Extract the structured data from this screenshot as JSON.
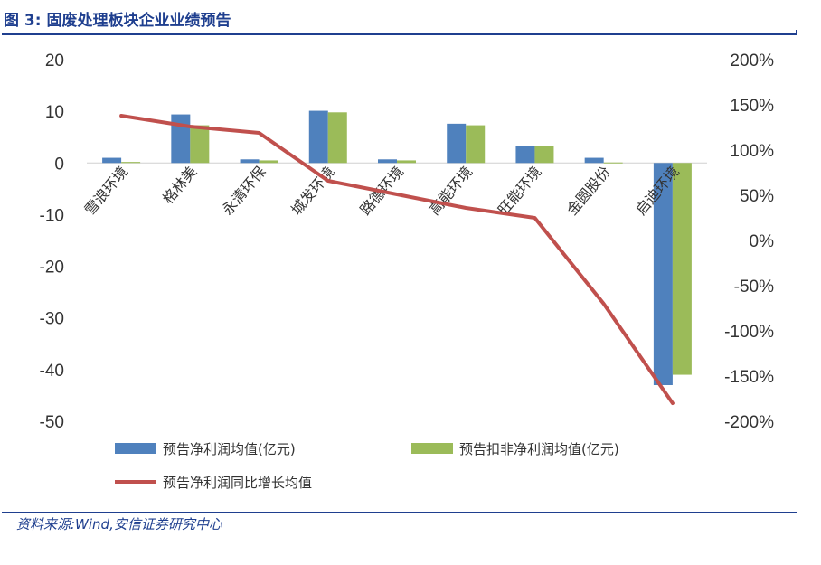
{
  "figure": {
    "title": "图 3:  固废处理板块企业业绩预告",
    "source": "资料来源:Wind,安信证券研究中心"
  },
  "colors": {
    "accent": "#1f3f8f",
    "bar_series_1": "#4f81bd",
    "bar_series_2": "#9bbb59",
    "line_series": "#c0504d"
  },
  "chart_data": {
    "type": "bar",
    "categories": [
      "雪浪环境",
      "格林美",
      "永清环保",
      "城发环境",
      "路德环境",
      "高能环境",
      "旺能环境",
      "金圆股份",
      "启迪环境"
    ],
    "series": [
      {
        "name": "预告净利润均值(亿元)",
        "type": "bar",
        "axis": "left",
        "values": [
          1.0,
          9.4,
          0.7,
          10.1,
          0.7,
          7.6,
          3.2,
          1.0,
          -43.0
        ]
      },
      {
        "name": "预告扣非净利润均值(亿元)",
        "type": "bar",
        "axis": "left",
        "values": [
          0.2,
          7.3,
          0.5,
          9.8,
          0.5,
          7.3,
          3.2,
          0.1,
          -41.0
        ]
      },
      {
        "name": "预告净利润同比增长均值",
        "type": "line",
        "axis": "right",
        "values": [
          138,
          126,
          119,
          66,
          51,
          36,
          25,
          -70,
          -180
        ]
      }
    ],
    "y_left": {
      "min": -50,
      "max": 20,
      "ticks": [
        "20",
        "10",
        "0",
        "-10",
        "-20",
        "-30",
        "-40",
        "-50"
      ]
    },
    "y_right": {
      "min": -200,
      "max": 200,
      "ticks": [
        "200%",
        "150%",
        "100%",
        "50%",
        "0%",
        "-50%",
        "-100%",
        "-150%",
        "-200%"
      ]
    },
    "legend_position": "bottom",
    "grid": false
  }
}
